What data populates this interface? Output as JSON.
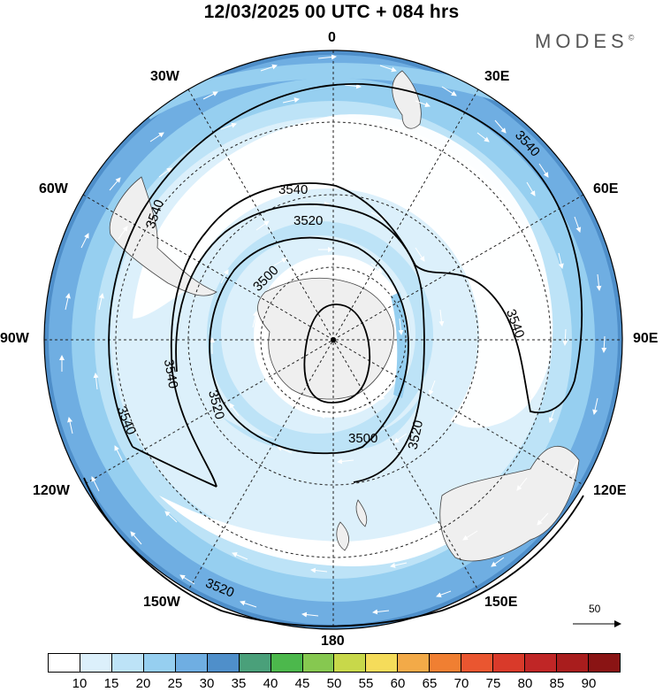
{
  "title": "12/03/2025  00 UTC  + 084 hrs",
  "brand": "MODES",
  "brand_mark": "©",
  "longitude_labels": {
    "n0": "0",
    "e30": "30E",
    "e60": "60E",
    "e90": "90E",
    "e120": "120E",
    "e150": "150E",
    "s180": "180",
    "w150": "150W",
    "w120": "120W",
    "w90": "90W",
    "w60": "60W",
    "w30": "30W"
  },
  "contour_labels": {
    "c3540a": "3540",
    "c3540b": "3540",
    "c3540c": "3540",
    "c3540d": "3540",
    "c3540e": "3540",
    "c3520a": "3520",
    "c3520b": "3520",
    "c3520c": "3520",
    "c3520d": "3520",
    "c3500a": "3500",
    "c3500b": "3500"
  },
  "reference_vector": {
    "label": "50"
  },
  "colorbar": {
    "ticks": [
      "10",
      "15",
      "20",
      "25",
      "30",
      "35",
      "40",
      "45",
      "50",
      "55",
      "60",
      "65",
      "70",
      "75",
      "80",
      "85",
      "90"
    ],
    "colors": [
      "#ffffff",
      "#dcf0fb",
      "#bde3f7",
      "#96cff0",
      "#6faee2",
      "#4f8fca",
      "#4aa07a",
      "#4cb84c",
      "#86c850",
      "#c8d84a",
      "#f5dc5a",
      "#f3aa48",
      "#f07f32",
      "#ea5630",
      "#d93a2a",
      "#c02626",
      "#a91d1d",
      "#8a1414"
    ]
  }
}
